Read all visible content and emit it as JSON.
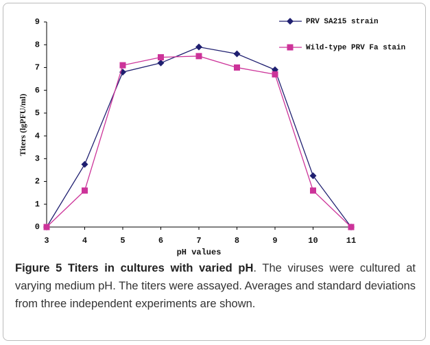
{
  "chart_data": {
    "type": "line",
    "ylabel": "Titers (lgPFU/ml)",
    "xlabel": "pH values",
    "x": [
      3,
      4,
      5,
      6,
      7,
      8,
      9,
      10,
      11
    ],
    "series": [
      {
        "name": "PRV SA215 strain",
        "color": "#1f1f70",
        "marker": "diamond",
        "values": [
          0,
          2.75,
          6.8,
          7.2,
          7.9,
          7.6,
          6.9,
          2.25,
          0
        ]
      },
      {
        "name": "Wild-type PRV Fa stain",
        "color": "#cc3399",
        "marker": "square",
        "values": [
          0,
          1.6,
          7.1,
          7.45,
          7.5,
          7.0,
          6.7,
          1.6,
          0
        ]
      }
    ],
    "xlim": [
      3,
      11
    ],
    "xticks": [
      3,
      4,
      5,
      6,
      7,
      8,
      9,
      10,
      11
    ],
    "ylim": [
      0,
      9
    ],
    "yticks": [
      0,
      1,
      2,
      3,
      4,
      5,
      6,
      7,
      8,
      9
    ],
    "grid": false,
    "legend": "top-right"
  },
  "caption": {
    "title": "Figure 5 Titers in cultures with varied pH",
    "text": ". The viruses were cultured at varying medium pH. The titers were assayed. Averages and standard deviations from three independent experiments are shown."
  }
}
